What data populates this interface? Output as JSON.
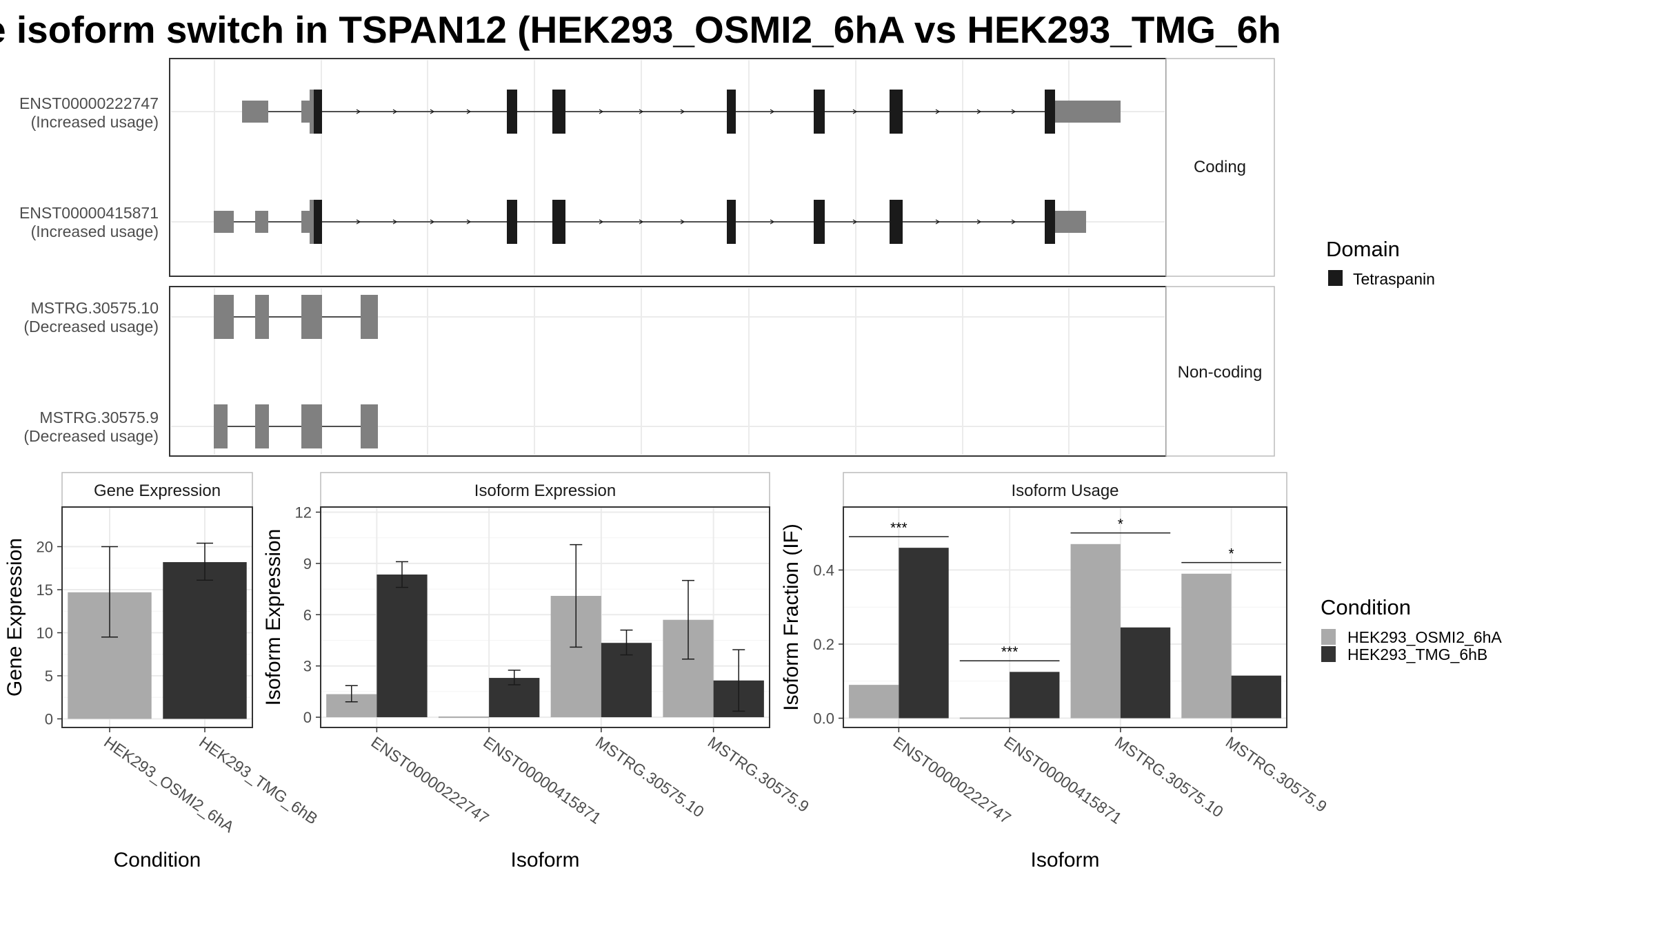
{
  "title": "e isoform switch in TSPAN12 (HEK293_OSMI2_6hA vs HEK293_TMG_6h",
  "colors": {
    "condition_a": "#aaaaaa",
    "condition_b": "#333333",
    "domain": "#1a1a1a",
    "utr_exon": "#808080"
  },
  "chart_data": [
    {
      "type": "gene-structure",
      "facets": [
        {
          "label": "Coding",
          "transcripts": [
            {
              "id": "ENST00000222747",
              "note": "(Increased usage)"
            },
            {
              "id": "ENST00000415871",
              "note": "(Increased usage)"
            }
          ]
        },
        {
          "label": "Non-coding",
          "transcripts": [
            {
              "id": "MSTRG.30575.10",
              "note": "(Decreased usage)"
            },
            {
              "id": "MSTRG.30575.9",
              "note": "(Decreased usage)"
            }
          ]
        }
      ],
      "legend": {
        "title": "Domain",
        "items": [
          "Tetraspanin"
        ]
      }
    },
    {
      "type": "bar",
      "facet": "Gene Expression",
      "xlabel": "Condition",
      "ylabel": "Gene Expression",
      "categories": [
        "HEK293_OSMI2_6hA",
        "HEK293_TMG_6hB"
      ],
      "values": [
        14.7,
        18.2
      ],
      "errors": [
        [
          9.5,
          20.0
        ],
        [
          16.1,
          20.4
        ]
      ],
      "ylim": [
        -1,
        24.6
      ],
      "yticks": [
        0,
        5,
        10,
        15,
        20
      ]
    },
    {
      "type": "bar",
      "facet": "Isoform Expression",
      "xlabel": "Isoform",
      "ylabel": "Isoform Expression",
      "categories": [
        "ENST00000222747",
        "ENST00000415871",
        "MSTRG.30575.10",
        "MSTRG.30575.9"
      ],
      "series": [
        {
          "name": "HEK293_OSMI2_6hA",
          "values": [
            1.35,
            0.0,
            7.1,
            5.7
          ],
          "errors": [
            [
              0.9,
              1.85
            ],
            [
              0.0,
              0.0
            ],
            [
              4.1,
              10.1
            ],
            [
              3.4,
              8.0
            ]
          ]
        },
        {
          "name": "HEK293_TMG_6hB",
          "values": [
            8.35,
            2.3,
            4.35,
            2.15
          ],
          "errors": [
            [
              7.6,
              9.1
            ],
            [
              1.9,
              2.75
            ],
            [
              3.65,
              5.1
            ],
            [
              0.35,
              3.95
            ]
          ]
        }
      ],
      "ylim": [
        -0.6,
        12.3
      ],
      "yticks": [
        0,
        3,
        6,
        9,
        12
      ]
    },
    {
      "type": "bar",
      "facet": "Isoform Usage",
      "xlabel": "Isoform",
      "ylabel": "Isoform Fraction (IF)",
      "categories": [
        "ENST00000222747",
        "ENST00000415871",
        "MSTRG.30575.10",
        "MSTRG.30575.9"
      ],
      "series": [
        {
          "name": "HEK293_OSMI2_6hA",
          "values": [
            0.09,
            0.0,
            0.47,
            0.39
          ]
        },
        {
          "name": "HEK293_TMG_6hB",
          "values": [
            0.46,
            0.125,
            0.245,
            0.115
          ]
        }
      ],
      "significance": [
        "***",
        "***",
        "*",
        "*"
      ],
      "ylim": [
        -0.025,
        0.57
      ],
      "yticks": [
        0.0,
        0.2,
        0.4
      ],
      "ytick_labels": [
        "0.0",
        "0.2",
        "0.4"
      ]
    }
  ],
  "legend_condition": {
    "title": "Condition",
    "items": [
      "HEK293_OSMI2_6hA",
      "HEK293_TMG_6hB"
    ]
  }
}
